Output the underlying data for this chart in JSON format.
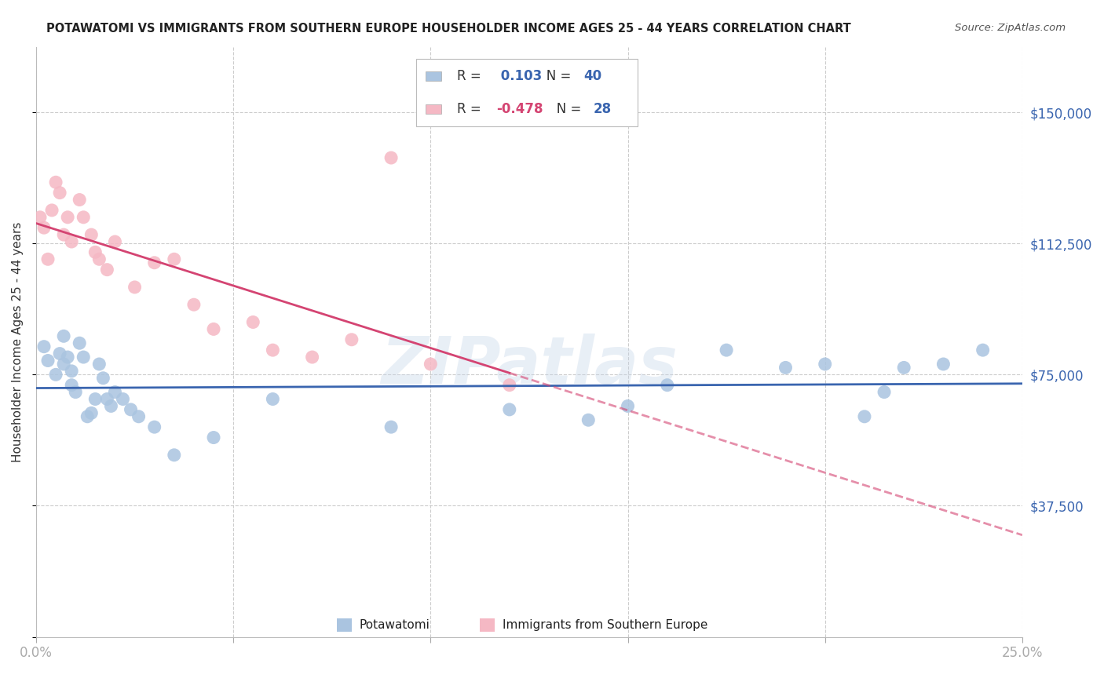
{
  "title": "POTAWATOMI VS IMMIGRANTS FROM SOUTHERN EUROPE HOUSEHOLDER INCOME AGES 25 - 44 YEARS CORRELATION CHART",
  "source": "Source: ZipAtlas.com",
  "ylabel": "Householder Income Ages 25 - 44 years",
  "xlim": [
    0.0,
    0.25
  ],
  "ylim": [
    0,
    168750
  ],
  "yticks": [
    0,
    37500,
    75000,
    112500,
    150000
  ],
  "ytick_labels": [
    "",
    "$37,500",
    "$75,000",
    "$112,500",
    "$150,000"
  ],
  "xticks": [
    0.0,
    0.05,
    0.1,
    0.15,
    0.2,
    0.25
  ],
  "xtick_labels": [
    "0.0%",
    "",
    "",
    "",
    "",
    "25.0%"
  ],
  "background_color": "#ffffff",
  "grid_color": "#cccccc",
  "watermark": "ZIPatlas",
  "blue_color": "#aac4e0",
  "pink_color": "#f5b8c4",
  "blue_line_color": "#3a65af",
  "pink_line_color": "#d44472",
  "blue_R": 0.103,
  "blue_N": 40,
  "pink_R": -0.478,
  "pink_N": 28,
  "legend_label_blue": "Potawatomi",
  "legend_label_pink": "Immigrants from Southern Europe",
  "blue_x": [
    0.002,
    0.003,
    0.005,
    0.006,
    0.007,
    0.007,
    0.008,
    0.009,
    0.009,
    0.01,
    0.011,
    0.012,
    0.013,
    0.014,
    0.015,
    0.016,
    0.017,
    0.018,
    0.019,
    0.02,
    0.022,
    0.024,
    0.026,
    0.03,
    0.035,
    0.045,
    0.06,
    0.09,
    0.12,
    0.14,
    0.15,
    0.16,
    0.175,
    0.19,
    0.2,
    0.21,
    0.215,
    0.22,
    0.23,
    0.24
  ],
  "blue_y": [
    83000,
    79000,
    75000,
    81000,
    78000,
    86000,
    80000,
    76000,
    72000,
    70000,
    84000,
    80000,
    63000,
    64000,
    68000,
    78000,
    74000,
    68000,
    66000,
    70000,
    68000,
    65000,
    63000,
    60000,
    52000,
    57000,
    68000,
    60000,
    65000,
    62000,
    66000,
    72000,
    82000,
    77000,
    78000,
    63000,
    70000,
    77000,
    78000,
    82000
  ],
  "pink_x": [
    0.001,
    0.002,
    0.003,
    0.004,
    0.005,
    0.006,
    0.007,
    0.008,
    0.009,
    0.011,
    0.012,
    0.014,
    0.015,
    0.016,
    0.018,
    0.02,
    0.025,
    0.03,
    0.035,
    0.04,
    0.045,
    0.055,
    0.06,
    0.07,
    0.08,
    0.09,
    0.1,
    0.12
  ],
  "pink_y": [
    120000,
    117000,
    108000,
    122000,
    130000,
    127000,
    115000,
    120000,
    113000,
    125000,
    120000,
    115000,
    110000,
    108000,
    105000,
    113000,
    100000,
    107000,
    108000,
    95000,
    88000,
    90000,
    82000,
    80000,
    85000,
    137000,
    78000,
    72000
  ]
}
